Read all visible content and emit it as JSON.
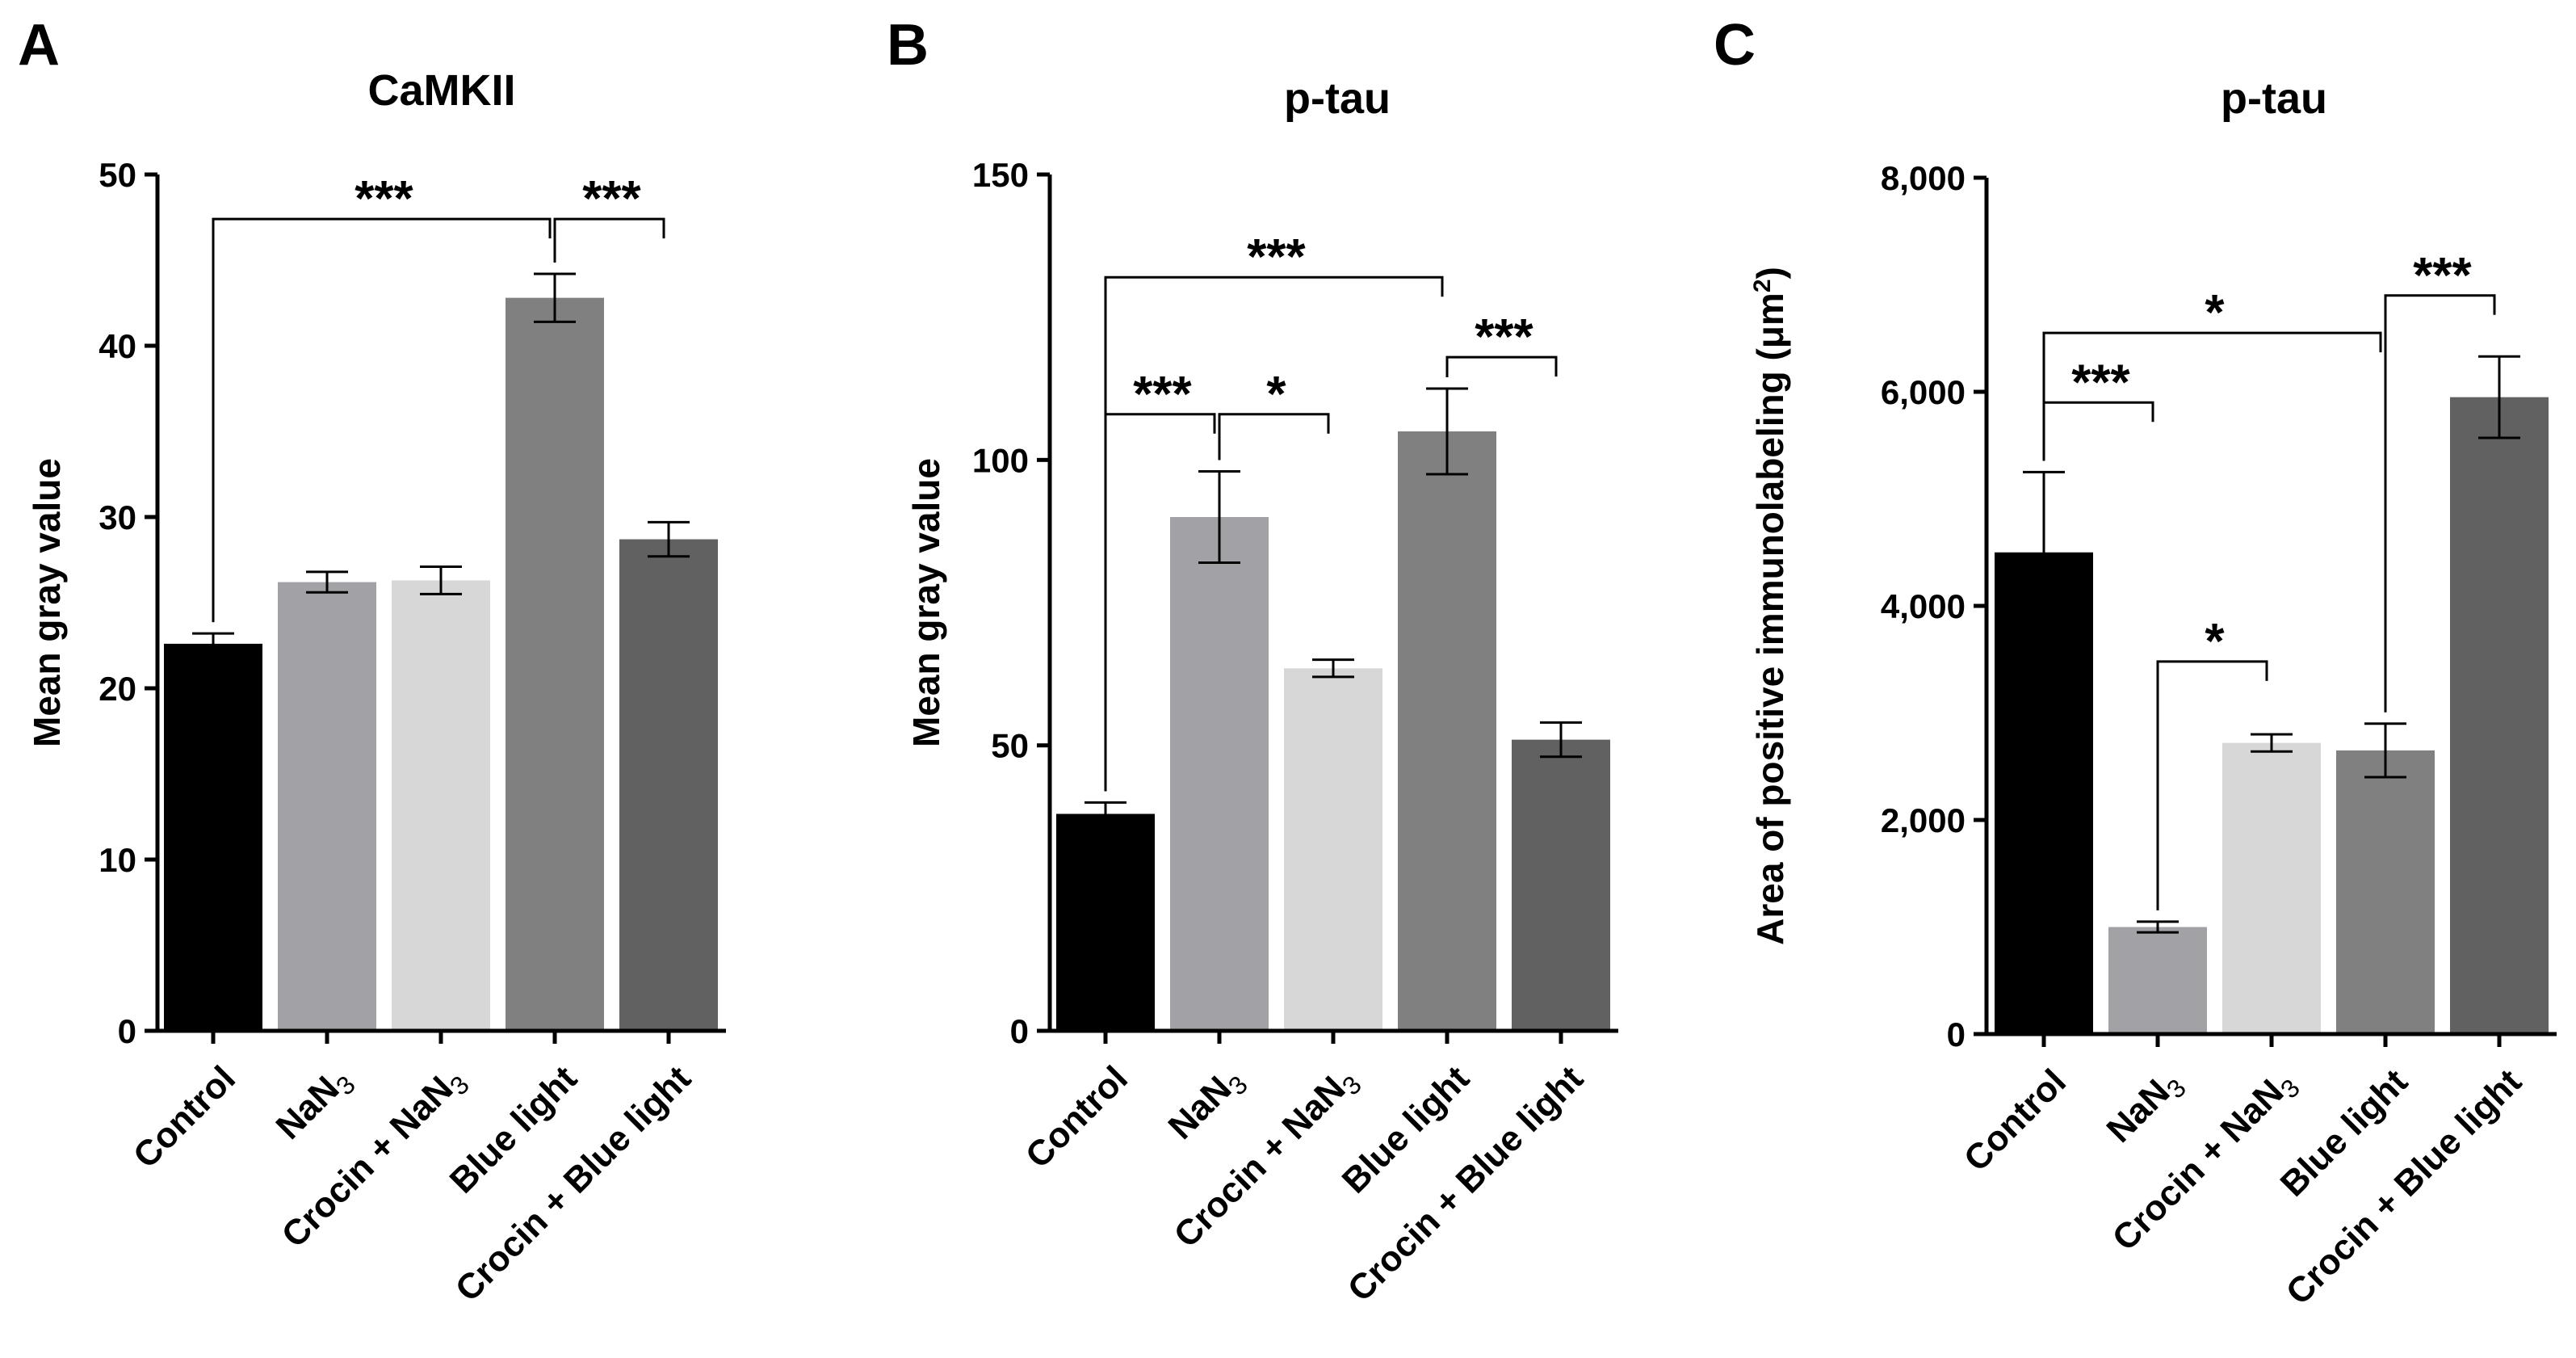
{
  "figure": {
    "panels": [
      "A",
      "B",
      "C"
    ]
  },
  "chart_data": [
    {
      "type": "bar",
      "panel": "A",
      "title": "CaMKII",
      "ylabel": "Mean gray value",
      "xlabel": "",
      "categories": [
        "Control",
        "NaN3",
        "Crocin + NaN3",
        "Blue light",
        "Crocin + Blue light"
      ],
      "category_labels": [
        {
          "main": "Control",
          "sub": ""
        },
        {
          "main": "NaN",
          "sub": "3"
        },
        {
          "main": "Crocin + NaN",
          "sub": "3"
        },
        {
          "main": "Blue light",
          "sub": ""
        },
        {
          "main": "Crocin + Blue light",
          "sub": ""
        }
      ],
      "values": [
        22.6,
        26.2,
        26.3,
        42.8,
        28.7
      ],
      "errors": [
        0.6,
        0.6,
        0.8,
        1.4,
        1.0
      ],
      "colors": [
        "#000000",
        "#a2a1a6",
        "#d7d7d7",
        "#808080",
        "#616161"
      ],
      "ylim": [
        0,
        50
      ],
      "yticks": [
        0,
        10,
        20,
        30,
        40,
        50
      ],
      "ytick_labels": [
        "0",
        "10",
        "20",
        "30",
        "40",
        "50"
      ],
      "significance": [
        {
          "from": 0,
          "to": 3,
          "label": "***",
          "bracket_y": 47.4
        },
        {
          "from": 3,
          "to": 4,
          "label": "***",
          "bracket_y": 47.4
        }
      ]
    },
    {
      "type": "bar",
      "panel": "B",
      "title": "p-tau",
      "ylabel": "Mean gray value",
      "xlabel": "",
      "categories": [
        "Control",
        "NaN3",
        "Crocin + NaN3",
        "Blue light",
        "Crocin + Blue light"
      ],
      "category_labels": [
        {
          "main": "Control",
          "sub": ""
        },
        {
          "main": "NaN",
          "sub": "3"
        },
        {
          "main": "Crocin + NaN",
          "sub": "3"
        },
        {
          "main": "Blue light",
          "sub": ""
        },
        {
          "main": "Crocin + Blue light",
          "sub": ""
        }
      ],
      "values": [
        38,
        90,
        63.5,
        105,
        51
      ],
      "errors": [
        2.0,
        8.0,
        1.5,
        7.5,
        3.0
      ],
      "colors": [
        "#000000",
        "#a2a1a6",
        "#d7d7d7",
        "#808080",
        "#616161"
      ],
      "ylim": [
        0,
        150
      ],
      "yticks": [
        0,
        50,
        100,
        150
      ],
      "ytick_labels": [
        "0",
        "50",
        "100",
        "150"
      ],
      "significance": [
        {
          "from": 0,
          "to": 3,
          "label": "***",
          "bracket_y": 132
        },
        {
          "from": 0,
          "to": 1,
          "label": "***",
          "bracket_y": 108
        },
        {
          "from": 1,
          "to": 2,
          "label": "*",
          "bracket_y": 108
        },
        {
          "from": 3,
          "to": 4,
          "label": "***",
          "bracket_y": 118
        }
      ]
    },
    {
      "type": "bar",
      "panel": "C",
      "title": "p-tau",
      "ylabel": "Area of positive immunolabeling (μm",
      "ylabel_sup": "2",
      "ylabel_end": ")",
      "xlabel": "",
      "categories": [
        "Control",
        "NaN3",
        "Crocin + NaN3",
        "Blue light",
        "Crocin + Blue light"
      ],
      "category_labels": [
        {
          "main": "Control",
          "sub": ""
        },
        {
          "main": "NaN",
          "sub": "3"
        },
        {
          "main": "Crocin + NaN",
          "sub": "3"
        },
        {
          "main": "Blue light",
          "sub": ""
        },
        {
          "main": "Crocin + Blue light",
          "sub": ""
        }
      ],
      "values": [
        4500,
        1000,
        2720,
        2650,
        5950
      ],
      "errors": [
        750,
        50,
        80,
        250,
        380
      ],
      "colors": [
        "#000000",
        "#a2a1a6",
        "#d7d7d7",
        "#808080",
        "#616161"
      ],
      "ylim": [
        0,
        8000
      ],
      "yticks": [
        0,
        2000,
        4000,
        6000,
        8000
      ],
      "ytick_labels": [
        "0",
        "2,000",
        "4,000",
        "6,000",
        "8,000"
      ],
      "significance": [
        {
          "from": 0,
          "to": 3,
          "label": "*",
          "bracket_y": 6550
        },
        {
          "from": 0,
          "to": 1,
          "label": "***",
          "bracket_y": 5900
        },
        {
          "from": 1,
          "to": 2,
          "label": "*",
          "bracket_y": 3480
        },
        {
          "from": 3,
          "to": 4,
          "label": "***",
          "bracket_y": 6900
        }
      ]
    }
  ]
}
